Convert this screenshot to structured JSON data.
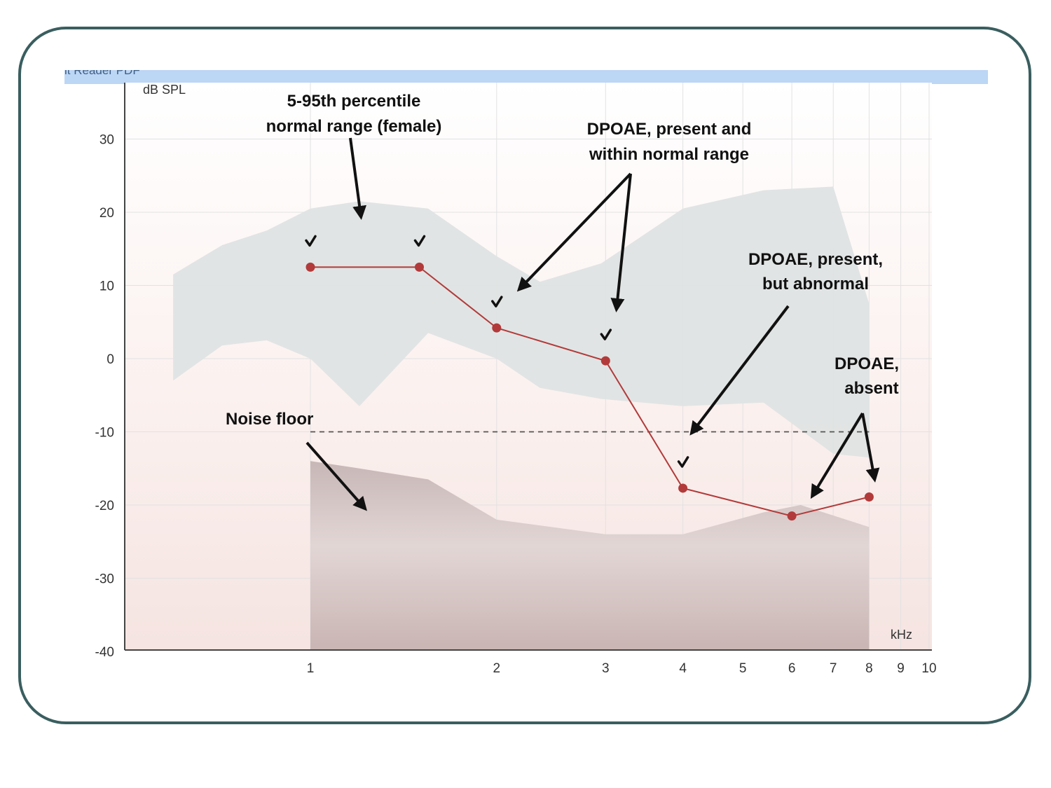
{
  "window": {
    "title_fragment": "it Reader PDF"
  },
  "chart_data": {
    "type": "line",
    "ylabel": "dB SPL",
    "xlabel": "kHz",
    "x_scale": "log",
    "xlim": [
      0.6,
      10
    ],
    "ylim": [
      -40,
      36
    ],
    "y_ticks": [
      "30",
      "20",
      "10",
      "0",
      "-10",
      "-20",
      "-30",
      "-40"
    ],
    "x_ticks": [
      "1",
      "2",
      "3",
      "4",
      "5",
      "6",
      "7",
      "8",
      "9",
      "10"
    ],
    "grid": true,
    "series": [
      {
        "x": [
          1,
          1.5,
          2,
          3,
          4,
          6,
          8
        ],
        "y": [
          12.5,
          12.5,
          4.2,
          -0.3,
          -17.7,
          -21.5,
          -18.9
        ],
        "color": "#b23a3a"
      }
    ],
    "check_marks_at_kHz": [
      1,
      1.5,
      2,
      3,
      4
    ],
    "normal_range": {
      "x": [
        0.6,
        0.72,
        0.85,
        1,
        1.2,
        1.55,
        2,
        2.35,
        2.95,
        4,
        5.4,
        7,
        8
      ],
      "upper": [
        11.5,
        15.5,
        17.5,
        20.5,
        21.5,
        20.5,
        14,
        10.5,
        13,
        20.5,
        23,
        23.5,
        7.5
      ],
      "lower": [
        -3,
        1.8,
        2.5,
        0,
        -6.5,
        3.5,
        0,
        -4,
        -5.5,
        -6.5,
        -6,
        -13,
        -13.5
      ],
      "color": "#dfe3e3"
    },
    "noise_floor": {
      "x": [
        1,
        1.2,
        1.55,
        2,
        3,
        4,
        5.4,
        6.2,
        8
      ],
      "y": [
        -14,
        -15,
        -16.5,
        -22,
        -24,
        -24,
        -21,
        -20,
        -23
      ],
      "dashed_level": -10,
      "color": "#cfc3c2"
    },
    "annotations": [
      {
        "lines": [
          "5-95th percentile",
          "normal  range (female)"
        ]
      },
      {
        "lines": [
          "DPOAE, present and",
          "within normal range"
        ]
      },
      {
        "lines": [
          "DPOAE, present,",
          "but abnormal"
        ]
      },
      {
        "lines": [
          "DPOAE,",
          "absent"
        ]
      },
      {
        "lines": [
          "Noise floor"
        ]
      }
    ]
  }
}
